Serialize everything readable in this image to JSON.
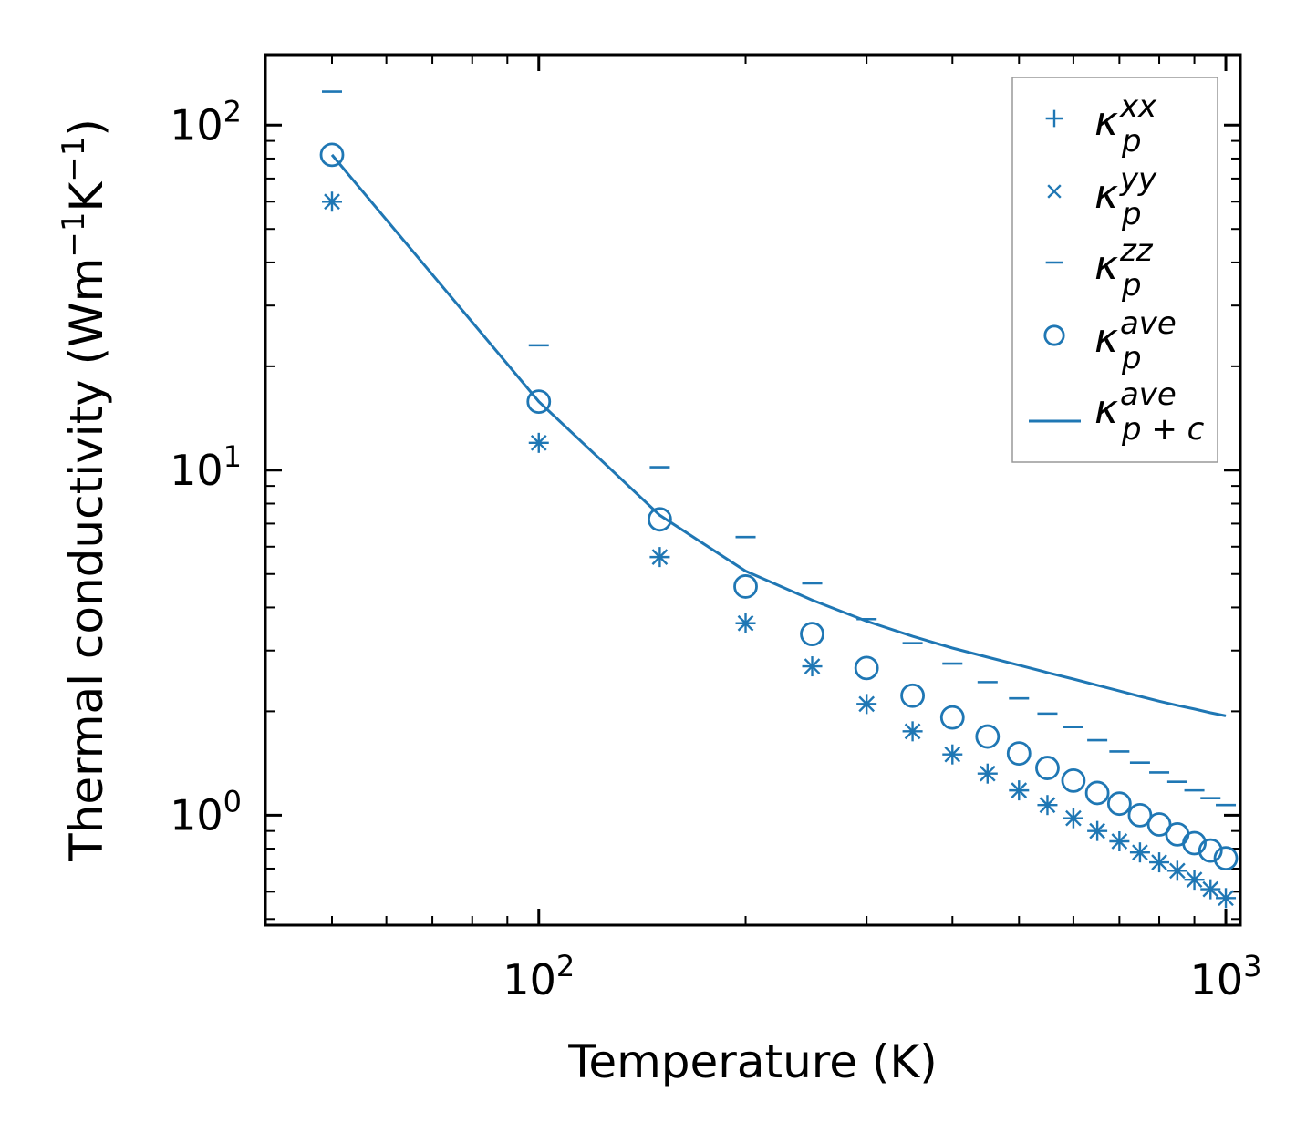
{
  "chart_data": {
    "type": "scatter",
    "xscale": "log",
    "yscale": "log",
    "xlabel": "Temperature (K)",
    "ylabel": {
      "base": "Thermal conductivity (Wm",
      "exp1": "−1",
      "mid": "K",
      "exp2": "−1",
      "end": ")"
    },
    "xlim": [
      40,
      1050
    ],
    "ylim": [
      0.48,
      160
    ],
    "xticks": [
      {
        "value": 100,
        "base": "10",
        "exp": "2"
      },
      {
        "value": 1000,
        "base": "10",
        "exp": "3"
      }
    ],
    "yticks": [
      {
        "value": 1,
        "base": "10",
        "exp": "0"
      },
      {
        "value": 10,
        "base": "10",
        "exp": "1"
      },
      {
        "value": 100,
        "base": "10",
        "exp": "2"
      }
    ],
    "color": "#1f77b4",
    "x": [
      50,
      100,
      150,
      200,
      250,
      300,
      350,
      400,
      450,
      500,
      550,
      600,
      650,
      700,
      750,
      800,
      850,
      900,
      950,
      1000
    ],
    "series": [
      {
        "name": "kappa_p_xx",
        "marker": "plus",
        "values": [
          60,
          12,
          5.6,
          3.6,
          2.7,
          2.1,
          1.75,
          1.5,
          1.32,
          1.18,
          1.07,
          0.98,
          0.9,
          0.84,
          0.78,
          0.73,
          0.69,
          0.65,
          0.61,
          0.575
        ]
      },
      {
        "name": "kappa_p_yy",
        "marker": "x",
        "values": [
          60,
          12,
          5.6,
          3.6,
          2.7,
          2.1,
          1.75,
          1.5,
          1.32,
          1.18,
          1.07,
          0.98,
          0.9,
          0.84,
          0.78,
          0.73,
          0.69,
          0.65,
          0.61,
          0.575
        ]
      },
      {
        "name": "kappa_p_zz",
        "marker": "hline",
        "values": [
          125,
          23,
          10.2,
          6.4,
          4.7,
          3.7,
          3.15,
          2.75,
          2.43,
          2.18,
          1.97,
          1.8,
          1.65,
          1.53,
          1.42,
          1.33,
          1.25,
          1.18,
          1.12,
          1.07
        ]
      },
      {
        "name": "kappa_p_ave",
        "marker": "circle",
        "values": [
          82,
          15.8,
          7.2,
          4.6,
          3.35,
          2.67,
          2.22,
          1.92,
          1.69,
          1.51,
          1.37,
          1.26,
          1.16,
          1.08,
          1.0,
          0.94,
          0.88,
          0.83,
          0.79,
          0.75
        ]
      },
      {
        "name": "kappa_pc_ave",
        "marker": "line",
        "values": [
          82,
          15.8,
          7.4,
          5.1,
          4.2,
          3.65,
          3.3,
          3.05,
          2.87,
          2.72,
          2.59,
          2.48,
          2.38,
          2.29,
          2.21,
          2.14,
          2.08,
          2.03,
          1.98,
          1.94
        ]
      }
    ],
    "legend": {
      "position": "top-right",
      "entries": [
        {
          "symbol": "κ",
          "sub": "p",
          "sup": "xx",
          "marker": "plus"
        },
        {
          "symbol": "κ",
          "sub": "p",
          "sup": "yy",
          "marker": "x"
        },
        {
          "symbol": "κ",
          "sub": "p",
          "sup": "zz",
          "marker": "hline"
        },
        {
          "symbol": "κ",
          "sub": "p",
          "sup": "ave",
          "marker": "circle"
        },
        {
          "symbol": "κ",
          "sub": "p + c",
          "sup": "ave",
          "marker": "line"
        }
      ]
    }
  }
}
